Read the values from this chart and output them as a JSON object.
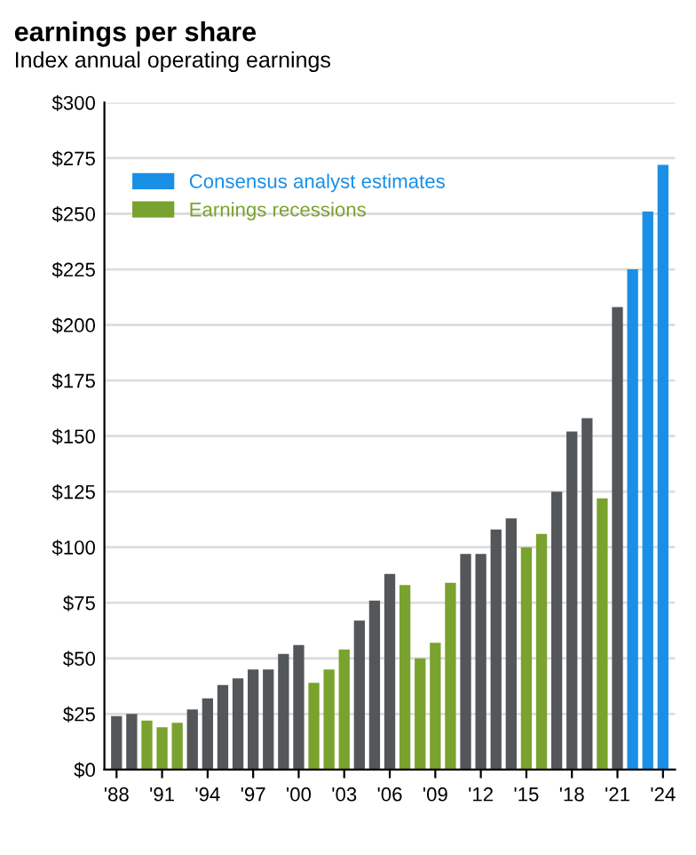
{
  "chart_data": {
    "type": "bar",
    "title": "earnings per share",
    "subtitle": "Index annual operating earnings",
    "categories": [
      "'88",
      null,
      null,
      "'91",
      null,
      null,
      "'94",
      null,
      null,
      "'97",
      null,
      null,
      "'00",
      null,
      null,
      "'03",
      null,
      null,
      "'06",
      null,
      null,
      "'09",
      null,
      null,
      "'12",
      null,
      null,
      "'15",
      null,
      null,
      "'18",
      null,
      null,
      "'21",
      null,
      null,
      "'24"
    ],
    "series": [
      {
        "color": "#54575a",
        "values": [
          24,
          25,
          null,
          null,
          null,
          27,
          32,
          38,
          41,
          45,
          45,
          52,
          56,
          null,
          null,
          null,
          67,
          76,
          88,
          null,
          null,
          null,
          null,
          97,
          97,
          108,
          113,
          null,
          null,
          125,
          152,
          158,
          null,
          208,
          null,
          null,
          null
        ]
      },
      {
        "name": "Consensus analyst estimates",
        "color": "#1a8fe6",
        "values": [
          null,
          null,
          null,
          null,
          null,
          null,
          null,
          null,
          null,
          null,
          null,
          null,
          null,
          null,
          null,
          null,
          null,
          null,
          null,
          null,
          null,
          null,
          null,
          null,
          null,
          null,
          null,
          null,
          null,
          null,
          null,
          null,
          null,
          null,
          225,
          251,
          272
        ]
      },
      {
        "name": "Earnings recessions",
        "color": "#7aa22e",
        "values": [
          null,
          null,
          22,
          19,
          21,
          null,
          null,
          null,
          null,
          null,
          null,
          null,
          null,
          39,
          45,
          54,
          null,
          null,
          null,
          83,
          50,
          57,
          84,
          null,
          null,
          null,
          null,
          100,
          106,
          null,
          null,
          null,
          122,
          null,
          null,
          null,
          null
        ]
      }
    ],
    "ylim": [
      0,
      300
    ],
    "yticks": [
      {
        "value": 0,
        "label": "$0"
      },
      {
        "value": 25,
        "label": "$25"
      },
      {
        "value": 50,
        "label": "$50"
      },
      {
        "value": 75,
        "label": "$75"
      },
      {
        "value": 100,
        "label": "$100"
      },
      {
        "value": 125,
        "label": "$125"
      },
      {
        "value": 150,
        "label": "$150"
      },
      {
        "value": 175,
        "label": "$175"
      },
      {
        "value": 200,
        "label": "$200"
      },
      {
        "value": 225,
        "label": "$225"
      },
      {
        "value": 250,
        "label": "$250"
      },
      {
        "value": 275,
        "label": "$275"
      },
      {
        "value": 300,
        "label": "$300"
      }
    ],
    "grid": "y",
    "legend": "top left"
  }
}
